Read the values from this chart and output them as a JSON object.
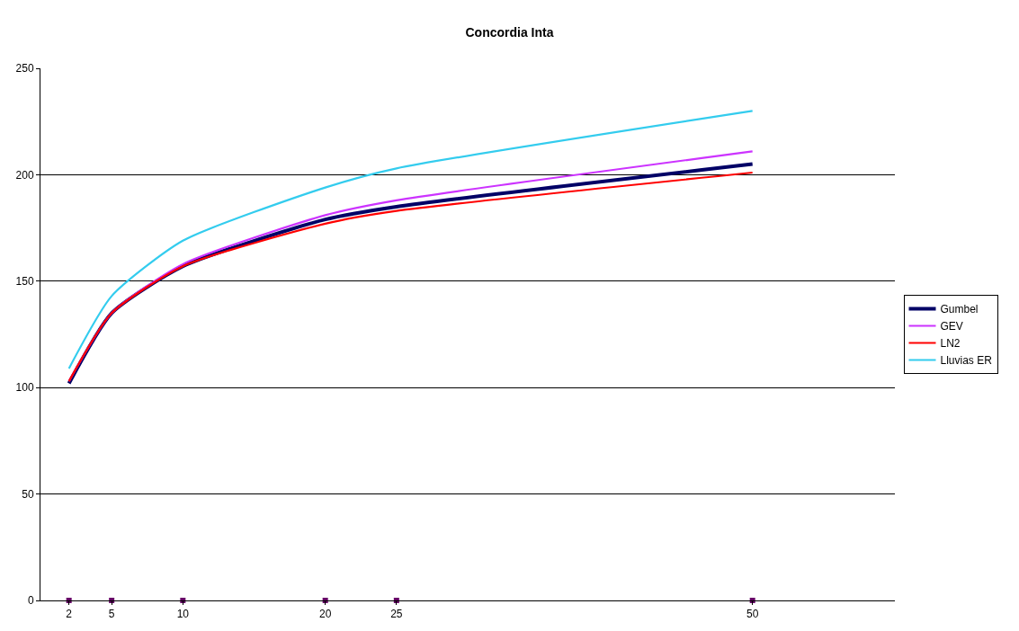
{
  "chart_data": {
    "type": "line",
    "title": "Concordia Inta",
    "x": [
      2,
      5,
      10,
      20,
      25,
      50
    ],
    "series": [
      {
        "name": "Gumbel",
        "color": "#000066",
        "values": [
          102,
          135,
          157,
          179,
          185,
          205
        ]
      },
      {
        "name": "GEV",
        "color": "#cc33ff",
        "values": [
          103,
          135,
          158,
          181,
          188,
          211
        ]
      },
      {
        "name": "LN2",
        "color": "#ff0000",
        "values": [
          103,
          135,
          157,
          177,
          183,
          201
        ]
      },
      {
        "name": "Lluvias ER",
        "color": "#33ccee",
        "values": [
          109,
          143,
          169,
          194,
          203,
          230
        ]
      },
      {
        "type": "scatter",
        "marker": "square",
        "color": "#660066",
        "values": [
          0,
          0,
          0,
          0,
          0,
          0
        ]
      }
    ],
    "xlim": [
      0,
      60
    ],
    "xticks": [
      2,
      5,
      10,
      20,
      25,
      50
    ],
    "ylim": [
      0,
      250
    ],
    "yticks": [
      0,
      50,
      100,
      150,
      200,
      250
    ],
    "grid": "y",
    "legend": "right",
    "marker": "none",
    "line_style": "solid"
  }
}
